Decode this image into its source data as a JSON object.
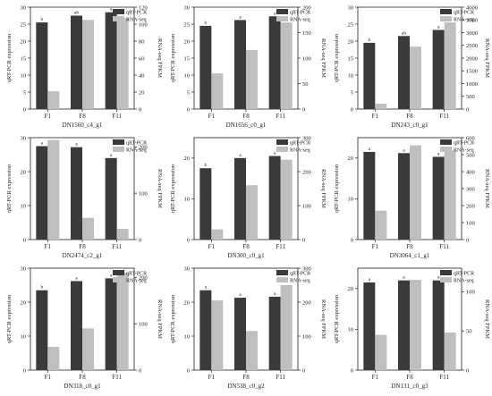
{
  "figure": {
    "legend": {
      "qpcr_label": "qRT-PCR",
      "rnaseq_label": "RNA-seq",
      "qpcr_color": "#3a3a3a",
      "rnaseq_color": "#bfbfbf",
      "placement": "top-right"
    },
    "left_axis_label": "qRT-PCR expression",
    "right_axis_label": "RNA-seq FPKM"
  },
  "chart_data": [
    {
      "type": "bar",
      "title": "DN1560_c4_g1",
      "categories": [
        "F1",
        "F8",
        "F11"
      ],
      "qpcr": [
        25.5,
        27.5,
        28.5
      ],
      "letters": [
        "b",
        "ab",
        "a"
      ],
      "rnaseq": [
        21,
        105,
        107
      ],
      "ylim_left": [
        0,
        30
      ],
      "yticks_left": [
        0,
        5,
        10,
        15,
        20,
        25,
        30
      ],
      "ylim_right": [
        0,
        120
      ],
      "yticks_right": [
        0,
        20,
        40,
        60,
        80,
        100,
        120
      ]
    },
    {
      "type": "bar",
      "title": "DN1656_c0_g1",
      "categories": [
        "F1",
        "F8",
        "F11"
      ],
      "qpcr": [
        24.5,
        26.2,
        27.3
      ],
      "letters": [
        "b",
        "a",
        "a"
      ],
      "rnaseq": [
        70,
        116,
        170
      ],
      "ylim_left": [
        0,
        30
      ],
      "yticks_left": [
        0,
        5,
        10,
        15,
        20,
        25,
        30
      ],
      "ylim_right": [
        0,
        200
      ],
      "yticks_right": [
        0,
        50,
        100,
        150,
        200
      ]
    },
    {
      "type": "bar",
      "title": "DN243_c0_g1",
      "categories": [
        "F1",
        "F8",
        "F11"
      ],
      "qpcr": [
        19.5,
        21.5,
        23.3
      ],
      "letters": [
        "b",
        "ab",
        "a"
      ],
      "rnaseq": [
        210,
        2450,
        3400
      ],
      "ylim_left": [
        0,
        30
      ],
      "yticks_left": [
        0,
        5,
        10,
        15,
        20,
        25,
        30
      ],
      "ylim_right": [
        0,
        4000
      ],
      "yticks_right": [
        0,
        500,
        1000,
        1500,
        2000,
        2500,
        3000,
        3500,
        4000
      ]
    },
    {
      "type": "bar",
      "title": "DN2474_c2_g1",
      "categories": [
        "F1",
        "F8",
        "F11"
      ],
      "qpcr": [
        27.5,
        27.2,
        24.0
      ],
      "letters": [
        "a",
        "a",
        "a"
      ],
      "rnaseq": [
        215,
        47,
        23
      ],
      "ylim_left": [
        0,
        30
      ],
      "yticks_left": [
        0,
        10,
        20,
        30
      ],
      "ylim_right": [
        0,
        220
      ],
      "yticks_right": [
        0,
        100,
        200
      ]
    },
    {
      "type": "bar",
      "title": "DN300_c0_g1",
      "categories": [
        "F1",
        "F8",
        "F11"
      ],
      "qpcr": [
        17.5,
        20.0,
        20.5
      ],
      "letters": [
        "b",
        "a",
        "a"
      ],
      "rnaseq": [
        30,
        160,
        235
      ],
      "ylim_left": [
        0,
        25
      ],
      "yticks_left": [
        0,
        10,
        20
      ],
      "ylim_right": [
        0,
        300
      ],
      "yticks_right": [
        0,
        100,
        200,
        300
      ]
    },
    {
      "type": "bar",
      "title": "DN3064_c1_g1",
      "categories": [
        "F1",
        "F8",
        "F11"
      ],
      "qpcr": [
        21.5,
        21.2,
        20.3
      ],
      "letters": [
        "a",
        "a",
        "a"
      ],
      "rnaseq": [
        170,
        555,
        525
      ],
      "ylim_left": [
        0,
        25
      ],
      "yticks_left": [
        0,
        10,
        20
      ],
      "ylim_right": [
        0,
        600
      ],
      "yticks_right": [
        0,
        100,
        200,
        300,
        400,
        500,
        600
      ]
    },
    {
      "type": "bar",
      "title": "DN318_c0_g1",
      "categories": [
        "F1",
        "F8",
        "F11"
      ],
      "qpcr": [
        23.5,
        26.2,
        27.0
      ],
      "letters": [
        "b",
        "a",
        "a"
      ],
      "rnaseq": [
        50,
        90,
        210
      ],
      "ylim_left": [
        0,
        30
      ],
      "yticks_left": [
        0,
        10,
        20,
        30
      ],
      "ylim_right": [
        0,
        220
      ],
      "yticks_right": [
        0,
        100,
        200
      ]
    },
    {
      "type": "bar",
      "title": "DN538_c0_g2",
      "categories": [
        "F1",
        "F8",
        "F11"
      ],
      "qpcr": [
        23.5,
        21.3,
        21.6
      ],
      "letters": [
        "a",
        "a",
        "a"
      ],
      "rnaseq": [
        205,
        115,
        250
      ],
      "ylim_left": [
        0,
        30
      ],
      "yticks_left": [
        0,
        10,
        20,
        30
      ],
      "ylim_right": [
        0,
        300
      ],
      "yticks_right": [
        0,
        100,
        200,
        300
      ]
    },
    {
      "type": "bar",
      "title": "DN131_c0_g3",
      "categories": [
        "F1",
        "F8",
        "F11"
      ],
      "qpcr": [
        21.5,
        22.0,
        22.0
      ],
      "letters": [
        "a",
        "a",
        "a"
      ],
      "rnaseq": [
        45,
        115,
        48
      ],
      "ylim_left": [
        0,
        25
      ],
      "yticks_left": [
        0,
        10,
        20
      ],
      "ylim_right": [
        0,
        130
      ],
      "yticks_right": [
        0,
        50,
        100
      ]
    }
  ]
}
